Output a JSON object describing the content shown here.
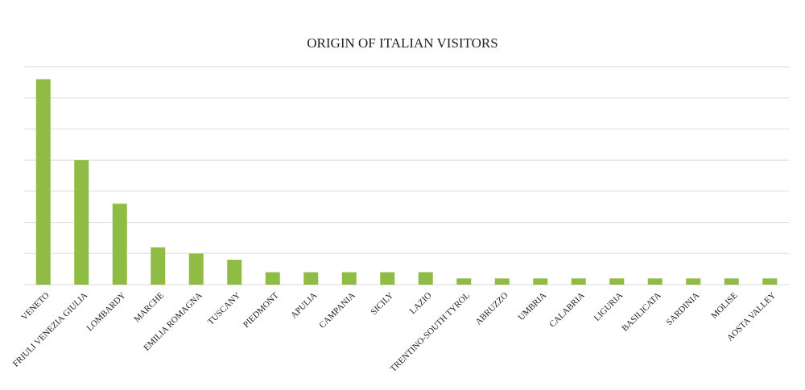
{
  "chart_data": {
    "type": "bar",
    "title": "ORIGIN OF ITALIAN VISITORS",
    "categories": [
      "VENETO",
      "FRIULI VENEZIA GIULIA",
      "LOMBARDY",
      "MARCHE",
      "EMILIA ROMAGNA",
      "TUSCANY",
      "PIEDMONT",
      "APULIA",
      "CAMPANIA",
      "SICILY",
      "LAZIO",
      "TRENTINO-SOUTH TYROL",
      "ABRUZZO",
      "UMBRIA",
      "CALABRIA",
      "LIGURIA",
      "BASILICATA",
      "SARDINIA",
      "MOLISE",
      "AOSTA VALLEY"
    ],
    "values": [
      33,
      20,
      13,
      6,
      5,
      4,
      2,
      2,
      2,
      2,
      2,
      1,
      1,
      1,
      1,
      1,
      1,
      1,
      1,
      1
    ],
    "color": "#8fbc45",
    "ylim": [
      0,
      35
    ],
    "yticks": [
      0,
      5,
      10,
      15,
      20,
      25,
      30,
      35
    ],
    "ytick_labels": false,
    "grid": true
  }
}
